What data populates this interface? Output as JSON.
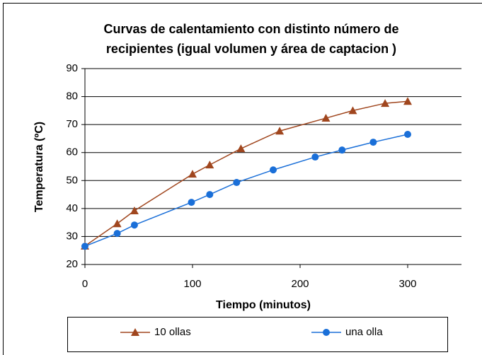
{
  "chart_data": {
    "type": "line",
    "title": [
      "Curvas de calentamiento con distinto número de",
      "recipientes (igual volumen y área de captacion )"
    ],
    "x_label": "Tiempo (minutos)",
    "y_label": "Temperatura (ºC)",
    "xlim": [
      0,
      350
    ],
    "xticks": [
      0,
      100,
      200,
      300
    ],
    "ylim": [
      20,
      90
    ],
    "yticks": [
      20,
      30,
      40,
      50,
      60,
      70,
      80,
      90
    ],
    "grid": true,
    "legend": "bottom",
    "series": [
      {
        "name": "10 ollas",
        "color": "#a0461e",
        "marker": "triangle",
        "x": [
          0,
          30,
          46,
          100,
          116,
          145,
          181,
          224,
          249,
          279,
          300
        ],
        "values": [
          26.6,
          34.6,
          39.2,
          52.3,
          55.6,
          61.4,
          67.7,
          72.3,
          75,
          77.6,
          78.3
        ]
      },
      {
        "name": "una olla",
        "color": "#1a6fd8",
        "marker": "circle",
        "x": [
          0,
          30,
          46,
          99,
          116,
          141,
          175,
          214,
          239,
          268,
          300
        ],
        "values": [
          26.5,
          31.1,
          34.1,
          42.2,
          45,
          49.3,
          53.8,
          58.4,
          60.9,
          63.7,
          66.5
        ]
      }
    ]
  }
}
